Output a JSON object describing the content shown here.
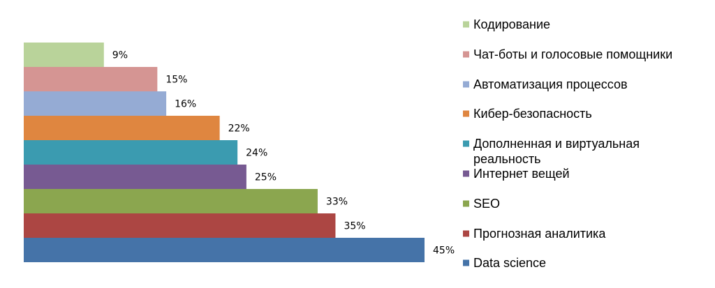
{
  "chart_data": {
    "type": "bar",
    "orientation": "horizontal",
    "categories": [
      "Кодирование",
      "Чат-боты и голосовые помощники",
      "Автоматизация процессов",
      "Кибер-безопасность",
      "Дополненная и виртуальная реальность",
      "Интернет вещей",
      "SEO",
      "Прогнозная аналитика",
      "Data science"
    ],
    "values": [
      9,
      15,
      16,
      22,
      24,
      25,
      33,
      35,
      45
    ],
    "value_labels": [
      "9%",
      "15%",
      "16%",
      "22%",
      "24%",
      "25%",
      "33%",
      "35%",
      "45%"
    ],
    "colors": [
      "#b9d39a",
      "#d59593",
      "#95abd4",
      "#df8640",
      "#3b9bb0",
      "#775a92",
      "#8ba64f",
      "#ac4643",
      "#4573a8"
    ],
    "xlim": [
      0,
      45
    ],
    "grid": false,
    "legend": "right"
  }
}
